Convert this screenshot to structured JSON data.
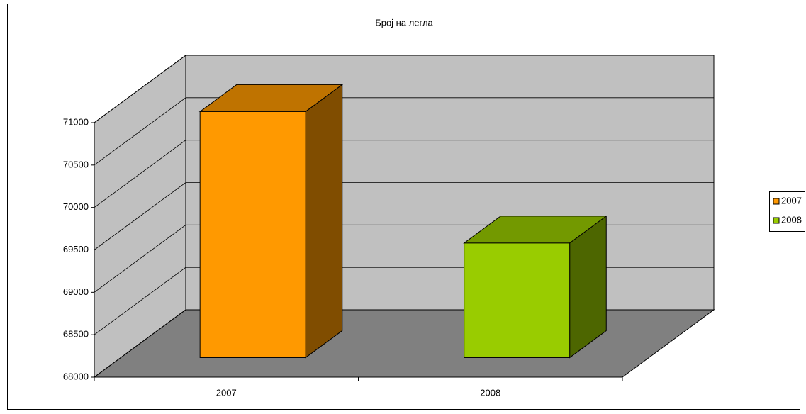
{
  "chart_data": {
    "type": "bar3d",
    "title": "Број на легла",
    "categories": [
      "2007",
      "2008"
    ],
    "values": [
      70900,
      69350
    ],
    "colors": [
      "#ff9900",
      "#99cc00"
    ],
    "ylim": [
      68000,
      71000
    ],
    "yticks": [
      68000,
      68500,
      69000,
      69500,
      70000,
      70500,
      71000
    ],
    "grid": true,
    "legend": "right"
  }
}
